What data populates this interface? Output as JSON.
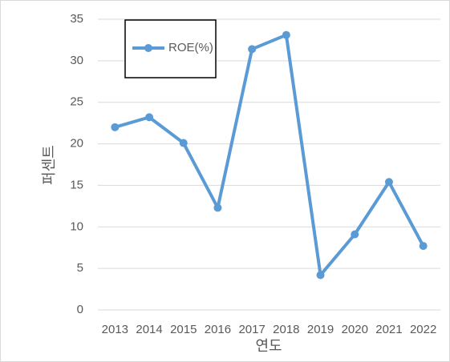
{
  "chart_data": {
    "type": "line",
    "x_label": "연도",
    "y_label": "퍼센트",
    "categories": [
      "2013",
      "2014",
      "2015",
      "2016",
      "2017",
      "2018",
      "2019",
      "2020",
      "2021",
      "2022"
    ],
    "series": [
      {
        "name": "ROE(%)",
        "color": "#5b9bd5",
        "values": [
          22,
          23.2,
          20.1,
          12.3,
          31.4,
          33.1,
          4.2,
          9.1,
          15.4,
          7.7
        ]
      }
    ],
    "ylim": [
      0,
      35
    ],
    "yticks": [
      0,
      5,
      10,
      15,
      20,
      25,
      30,
      35
    ],
    "grid": true,
    "legend": "top-left"
  }
}
